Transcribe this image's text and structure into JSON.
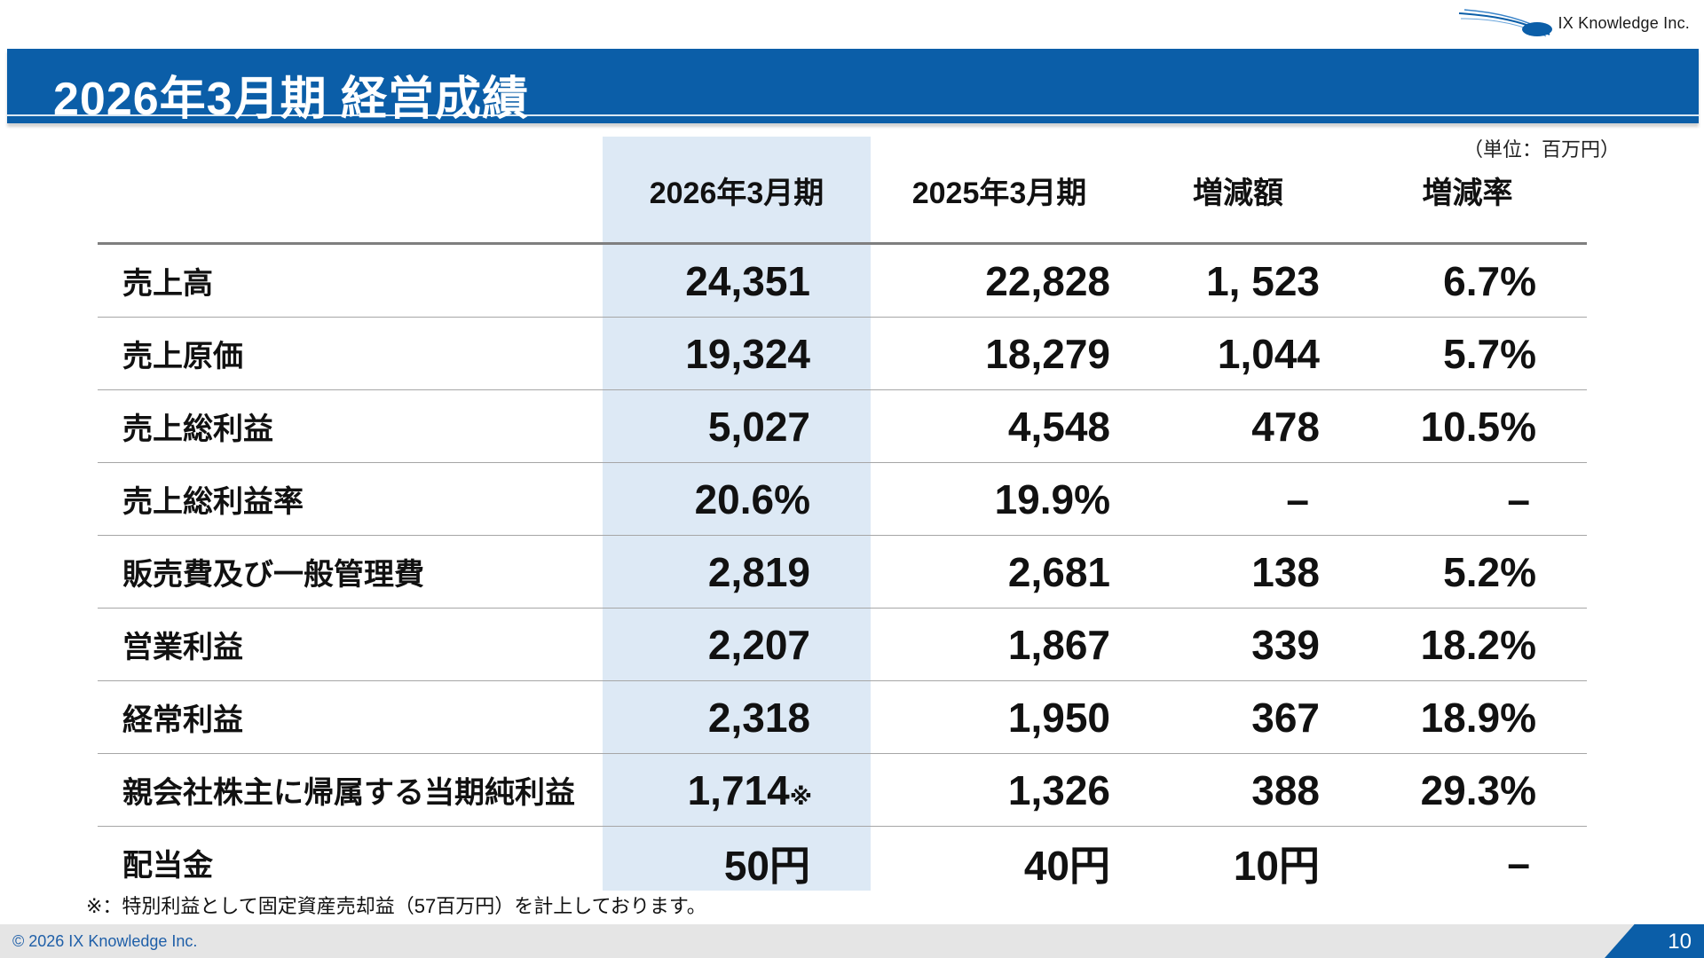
{
  "header": {
    "company_logo_text": "IX Knowledge Inc.",
    "title": "2026年3月期 経営成績"
  },
  "unit_note": "（単位：百万円）",
  "table": {
    "columns": [
      "",
      "2026年3月期",
      "2025年3月期",
      "増減額",
      "増減率"
    ],
    "rows": [
      {
        "label": "売上高",
        "fy2026": "24,351",
        "fy2026_mark": "",
        "fy2025": "22,828",
        "change": "1, 523",
        "rate": "6.7%"
      },
      {
        "label": "売上原価",
        "fy2026": "19,324",
        "fy2026_mark": "",
        "fy2025": "18,279",
        "change": "1,044",
        "rate": "5.7%"
      },
      {
        "label": "売上総利益",
        "fy2026": "5,027",
        "fy2026_mark": "",
        "fy2025": "4,548",
        "change": "478",
        "rate": "10.5%"
      },
      {
        "label": "売上総利益率",
        "fy2026": "20.6%",
        "fy2026_mark": "",
        "fy2025": "19.9%",
        "change": "–",
        "rate": "–"
      },
      {
        "label": "販売費及び一般管理費",
        "fy2026": "2,819",
        "fy2026_mark": "",
        "fy2025": "2,681",
        "change": "138",
        "rate": "5.2%"
      },
      {
        "label": "営業利益",
        "fy2026": "2,207",
        "fy2026_mark": "",
        "fy2025": "1,867",
        "change": "339",
        "rate": "18.2%"
      },
      {
        "label": "経常利益",
        "fy2026": "2,318",
        "fy2026_mark": "",
        "fy2025": "1,950",
        "change": "367",
        "rate": "18.9%"
      },
      {
        "label": "親会社株主に帰属する当期純利益",
        "fy2026": "1,714",
        "fy2026_mark": "※",
        "fy2025": "1,326",
        "change": "388",
        "rate": "29.3%"
      },
      {
        "label": "配当金",
        "fy2026": "50円",
        "fy2026_mark": "",
        "fy2025": "40円",
        "change": "10円",
        "rate": "–"
      }
    ]
  },
  "footnote": "※：特別利益として固定資産売却益（57百万円）を計上しております。",
  "footer": {
    "copyright": "© 2026 IX Knowledge Inc.",
    "page_number": "10"
  },
  "colors": {
    "brand_blue": "#0b5ea8",
    "highlight_column": "#dde9f5",
    "footer_gray": "#e5e5e5"
  }
}
